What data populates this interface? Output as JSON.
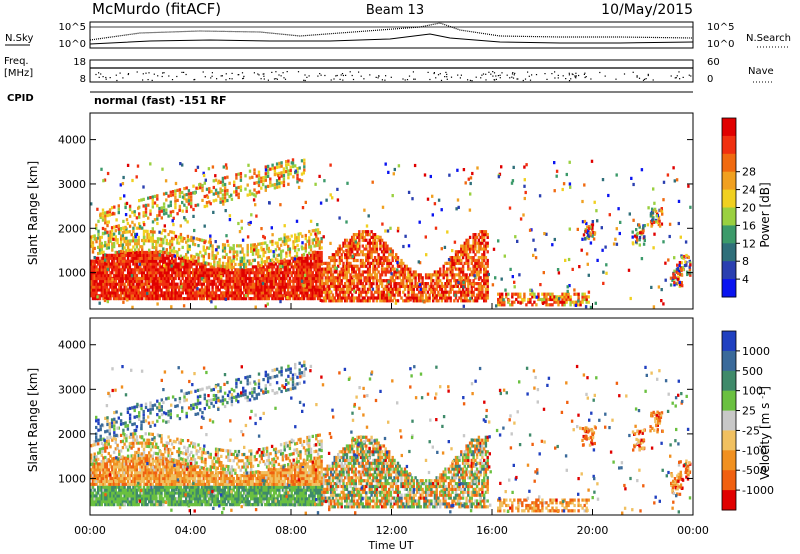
{
  "header": {
    "station": "McMurdo (fitACF)",
    "beam": "Beam 13",
    "date": "10/May/2015"
  },
  "top_panel": {
    "left_label": "N.Sky",
    "right_label": "N.Search",
    "left_ticks": [
      "10^5",
      "10^0"
    ],
    "right_ticks": [
      "10^5",
      "10^0"
    ]
  },
  "freq_panel": {
    "label_line1": "Freq.",
    "label_line2": "[MHz]",
    "left_ticks": [
      "18",
      "8"
    ],
    "right_label": "Nave",
    "right_ticks": [
      "60",
      "0"
    ]
  },
  "cpid": {
    "label": "CPID",
    "value": "normal (fast) -151 RF"
  },
  "chart_data": [
    {
      "type": "heatmap",
      "name": "power",
      "xlabel": "",
      "ylabel": "Slant Range [km]",
      "x_ticks": [
        "00:00",
        "04:00",
        "08:00",
        "12:00",
        "16:00",
        "20:00",
        "00:00"
      ],
      "y_ticks": [
        1000,
        2000,
        3000,
        4000
      ],
      "ylim": [
        180,
        4600
      ],
      "xlim_hours": [
        0,
        24
      ],
      "colorbar": {
        "label": "Power [dB]",
        "ticks": [
          "4",
          "8",
          "12",
          "16",
          "20",
          "24",
          "28"
        ],
        "colors": [
          "#0a14f0",
          "#2a3fb0",
          "#2f6f7a",
          "#3c9a6a",
          "#9ad040",
          "#f0d020",
          "#f0a020",
          "#f06a10",
          "#f03010",
          "#e00000"
        ]
      }
    },
    {
      "type": "heatmap",
      "name": "velocity",
      "xlabel": "Time UT",
      "ylabel": "Slant Range [km]",
      "x_ticks": [
        "00:00",
        "04:00",
        "08:00",
        "12:00",
        "16:00",
        "20:00",
        "00:00"
      ],
      "y_ticks": [
        1000,
        2000,
        3000,
        4000
      ],
      "ylim": [
        180,
        4600
      ],
      "xlim_hours": [
        0,
        24
      ],
      "colorbar": {
        "label": "Velocity [m s^-1]",
        "ticks": [
          "1000",
          "500",
          "100",
          "25",
          "-25",
          "-100",
          "-500",
          "-1000"
        ],
        "colors": [
          "#2040c0",
          "#3a6a9a",
          "#3f8a6a",
          "#6ac040",
          "#c8c8c8",
          "#f0c060",
          "#f09020",
          "#f06010",
          "#e00000"
        ]
      }
    }
  ]
}
